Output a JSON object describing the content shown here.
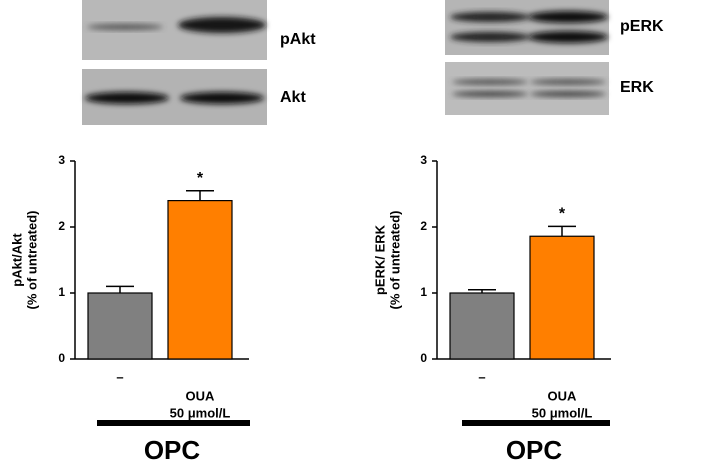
{
  "chart_data": [
    {
      "type": "bar",
      "ylabel": [
        "pAkt/Akt",
        "(% of untreated)"
      ],
      "categories": [
        [
          "–"
        ],
        [
          "OUA",
          "50 μmol/L"
        ]
      ],
      "values": [
        1.0,
        2.4
      ],
      "errors": [
        0.1,
        0.15
      ],
      "colors": [
        "#808080",
        "#ff7f00"
      ],
      "annotations": [
        "",
        "*"
      ],
      "group_label": "OPC",
      "blot_labels": [
        "pAkt",
        "Akt"
      ],
      "ylim": [
        0,
        3
      ],
      "yticks": [
        0,
        1,
        2,
        3
      ]
    },
    {
      "type": "bar",
      "ylabel": [
        "pERK/ ERK",
        "(% of untreated)"
      ],
      "categories": [
        [
          "–"
        ],
        [
          "OUA",
          "50 μmol/L"
        ]
      ],
      "values": [
        1.0,
        1.86
      ],
      "errors": [
        0.05,
        0.15
      ],
      "colors": [
        "#808080",
        "#ff7f00"
      ],
      "annotations": [
        "",
        "*"
      ],
      "group_label": "OPC",
      "blot_labels": [
        "pERK",
        "ERK"
      ],
      "ylim": [
        0,
        3
      ],
      "yticks": [
        0,
        1,
        2,
        3
      ]
    }
  ]
}
